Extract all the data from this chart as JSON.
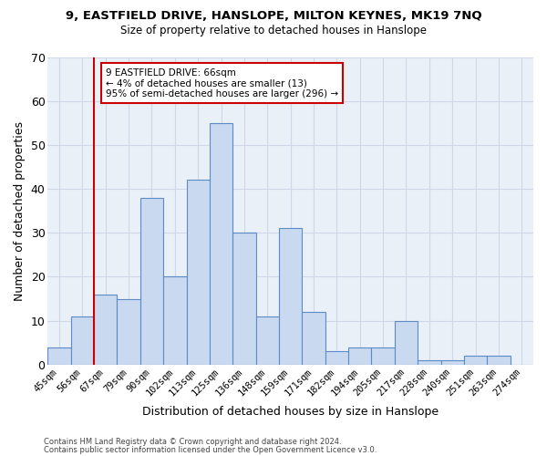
{
  "title1": "9, EASTFIELD DRIVE, HANSLOPE, MILTON KEYNES, MK19 7NQ",
  "title2": "Size of property relative to detached houses in Hanslope",
  "xlabel": "Distribution of detached houses by size in Hanslope",
  "ylabel": "Number of detached properties",
  "bar_labels": [
    "45sqm",
    "56sqm",
    "67sqm",
    "79sqm",
    "90sqm",
    "102sqm",
    "113sqm",
    "125sqm",
    "136sqm",
    "148sqm",
    "159sqm",
    "171sqm",
    "182sqm",
    "194sqm",
    "205sqm",
    "217sqm",
    "228sqm",
    "240sqm",
    "251sqm",
    "263sqm",
    "274sqm"
  ],
  "bar_values": [
    4,
    11,
    16,
    15,
    38,
    20,
    42,
    55,
    30,
    11,
    31,
    12,
    3,
    4,
    4,
    10,
    1,
    1,
    2,
    2,
    0
  ],
  "bar_color": "#c9d9f0",
  "bar_edgecolor": "#5b8cc8",
  "annotation_text": "9 EASTFIELD DRIVE: 66sqm\n← 4% of detached houses are smaller (13)\n95% of semi-detached houses are larger (296) →",
  "annotation_box_color": "#ffffff",
  "annotation_box_edgecolor": "#cc0000",
  "vline_color": "#cc0000",
  "footer1": "Contains HM Land Registry data © Crown copyright and database right 2024.",
  "footer2": "Contains public sector information licensed under the Open Government Licence v3.0.",
  "grid_color": "#d0d8e8",
  "bg_color": "#eaf0f8",
  "ylim": [
    0,
    70
  ],
  "yticks": [
    0,
    10,
    20,
    30,
    40,
    50,
    60,
    70
  ]
}
